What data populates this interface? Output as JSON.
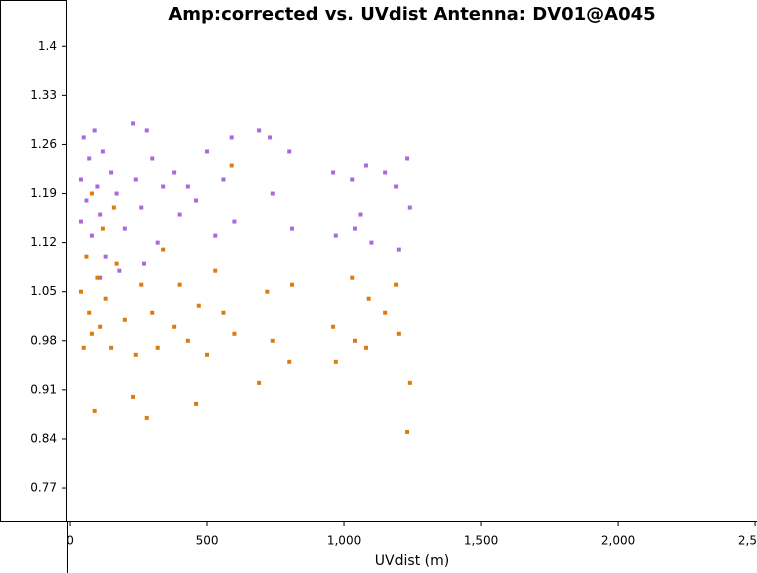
{
  "chart_data": {
    "type": "scatter",
    "title": "Amp:corrected vs. UVdist Antenna: DV01@A045",
    "x_label": "UVdist (m)",
    "xlim": [
      -11,
      2507
    ],
    "ylim": [
      0.723,
      1.466
    ],
    "xticks": [
      0,
      500,
      {
        "value": 1000,
        "label": "1,000"
      },
      {
        "value": 1500,
        "label": "1,500"
      },
      {
        "value": 2000,
        "label": "2,000"
      },
      {
        "value": 2500,
        "label": "2,500"
      }
    ],
    "yticks": [
      0.77,
      0.84,
      0.91,
      0.98,
      1.05,
      1.12,
      1.19,
      1.26,
      1.33,
      1.4
    ],
    "grid": false,
    "series": [
      {
        "color": "#a86ad8",
        "x": [
          40,
          40,
          50,
          60,
          70,
          80,
          90,
          100,
          110,
          120,
          130,
          150,
          170,
          200,
          230,
          240,
          260,
          280,
          300,
          320,
          340,
          380,
          400,
          430,
          460,
          500,
          530,
          560,
          590,
          600,
          690,
          730,
          740,
          800,
          810,
          960,
          970,
          1030,
          1040,
          1080,
          1100,
          1150,
          1190,
          1200,
          1230,
          1240,
          1060,
          270,
          110,
          180
        ],
        "values": [
          1.21,
          1.15,
          1.27,
          1.18,
          1.24,
          1.13,
          1.28,
          1.2,
          1.16,
          1.25,
          1.1,
          1.22,
          1.19,
          1.14,
          1.29,
          1.21,
          1.17,
          1.28,
          1.24,
          1.12,
          1.2,
          1.22,
          1.16,
          1.2,
          1.18,
          1.25,
          1.13,
          1.21,
          1.27,
          1.15,
          1.28,
          1.27,
          1.19,
          1.25,
          1.14,
          1.22,
          1.13,
          1.21,
          1.14,
          1.23,
          1.12,
          1.22,
          1.2,
          1.11,
          1.24,
          1.17,
          1.16,
          1.09,
          1.07,
          1.08
        ]
      },
      {
        "color": "#e07a10",
        "x": [
          40,
          50,
          60,
          70,
          80,
          90,
          100,
          110,
          120,
          130,
          150,
          170,
          200,
          230,
          240,
          260,
          280,
          300,
          320,
          340,
          380,
          400,
          430,
          460,
          470,
          500,
          530,
          560,
          590,
          600,
          690,
          720,
          740,
          800,
          810,
          960,
          970,
          1030,
          1040,
          1080,
          1090,
          1150,
          1190,
          1200,
          1230,
          1240,
          160,
          80
        ],
        "values": [
          1.05,
          0.97,
          1.1,
          1.02,
          0.99,
          0.88,
          1.07,
          1.0,
          1.14,
          1.04,
          0.97,
          1.09,
          1.01,
          0.9,
          0.96,
          1.06,
          0.87,
          1.02,
          0.97,
          1.11,
          1.0,
          1.06,
          0.98,
          0.89,
          1.03,
          0.96,
          1.08,
          1.02,
          1.23,
          0.99,
          0.92,
          1.05,
          0.98,
          0.95,
          1.06,
          1.0,
          0.95,
          1.07,
          0.98,
          0.97,
          1.04,
          1.02,
          1.06,
          0.99,
          0.85,
          0.92,
          1.17,
          1.19
        ]
      }
    ]
  }
}
